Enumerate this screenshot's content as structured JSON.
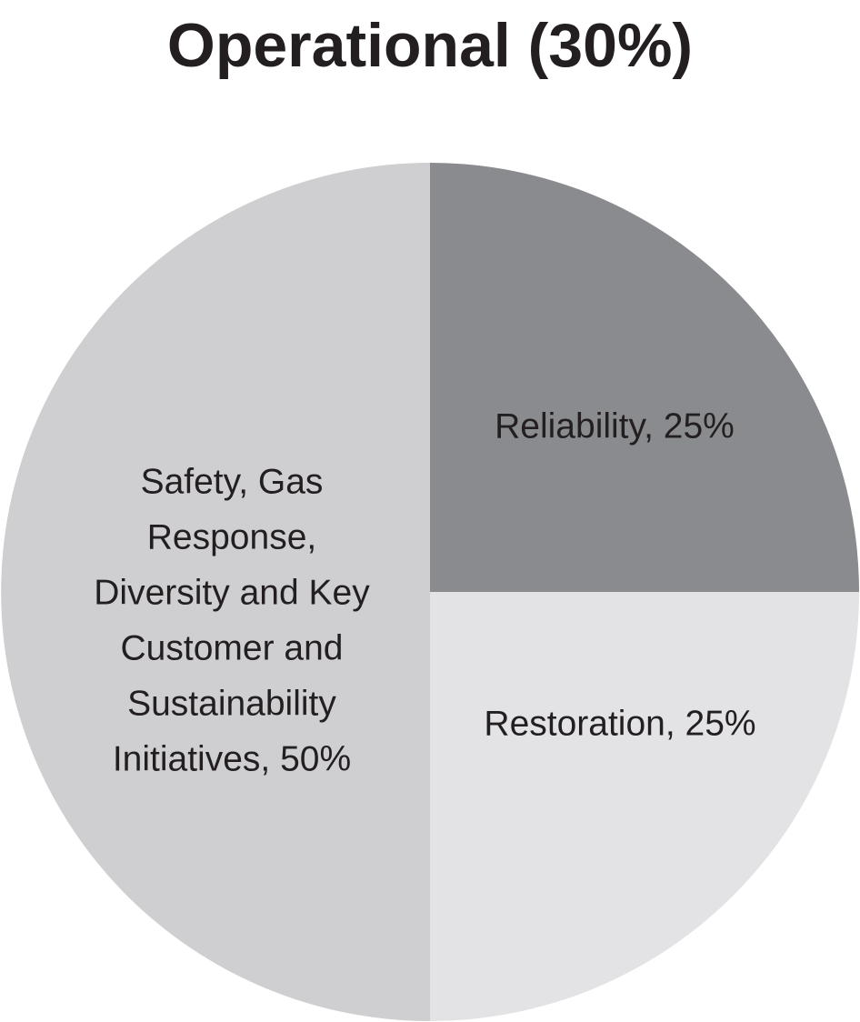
{
  "chart_data": {
    "type": "pie",
    "title": "Operational (30%)",
    "slices": [
      {
        "label_lines": [
          "Reliability, 25%"
        ],
        "value": 25,
        "color": "#8a8b8e"
      },
      {
        "label_lines": [
          "Restoration, 25%"
        ],
        "value": 25,
        "color": "#e3e3e5"
      },
      {
        "label_lines": [
          "Safety, Gas",
          "Response,",
          "Diversity and Key",
          "Customer and",
          "Sustainability",
          "Initiatives, 50%"
        ],
        "value": 50,
        "color": "#cfcfd1"
      }
    ],
    "start_angle": "12 o'clock",
    "direction": "clockwise"
  }
}
